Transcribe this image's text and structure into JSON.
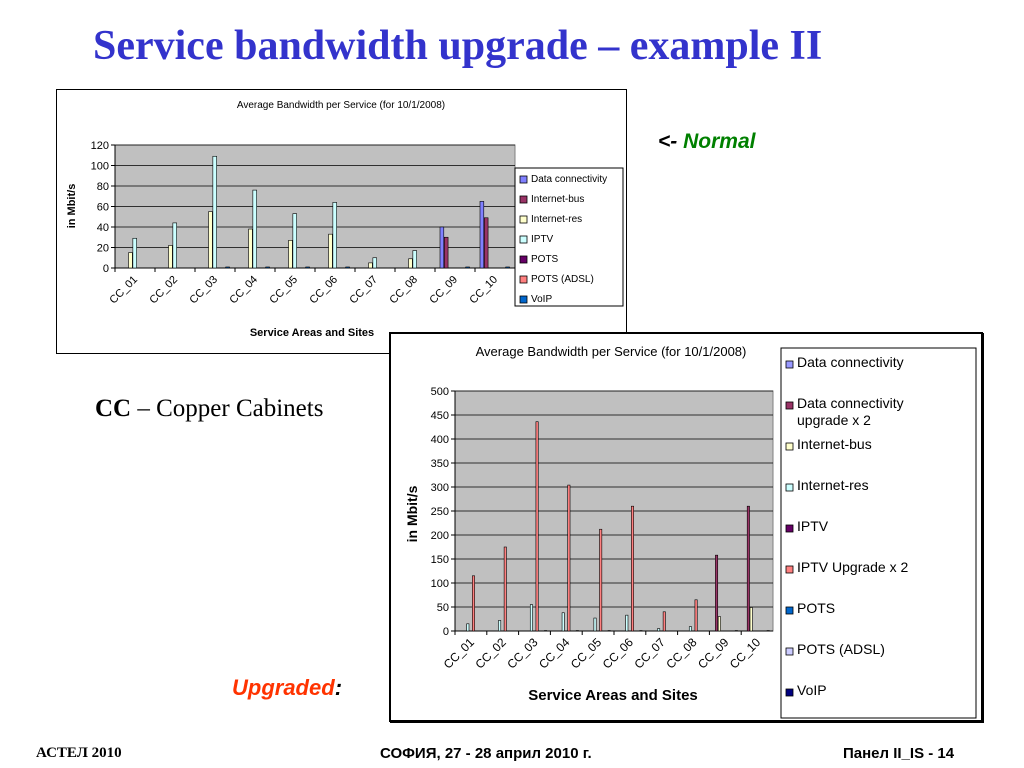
{
  "slide": {
    "title": "Service bandwidth upgrade – example II",
    "normal_arrow": "<-",
    "normal_label": "Normal",
    "cc_abbr": "CC",
    "cc_desc": " – Copper Cabinets",
    "upgraded_label": "Upgraded",
    "upgraded_colon": ":",
    "footer_left": "АСТЕЛ 2010",
    "footer_center": "СОФИЯ, 27 - 28 април 2010 г.",
    "footer_right": "Панел II_IS -  14"
  },
  "chart_data": [
    {
      "type": "bar",
      "title": "Average Bandwidth per Service (for 10/1/2008)",
      "xlabel": "Service Areas and Sites",
      "ylabel": "in Mbit/s",
      "ylim": [
        0,
        120
      ],
      "yticks": [
        0,
        20,
        40,
        60,
        80,
        100,
        120
      ],
      "grid": true,
      "legend_position": "right",
      "categories": [
        "CC_01",
        "CC_02",
        "CC_03",
        "CC_04",
        "CC_05",
        "CC_06",
        "CC_07",
        "CC_08",
        "CC_09",
        "CC_10"
      ],
      "series": [
        {
          "name": "Data connectivity",
          "color": "#8080ff",
          "values": [
            0,
            0,
            0,
            0,
            0,
            0,
            0,
            0,
            40,
            65
          ]
        },
        {
          "name": "Internet-bus",
          "color": "#993366",
          "values": [
            0,
            0,
            0,
            0,
            0,
            0,
            0,
            0,
            30,
            49
          ]
        },
        {
          "name": "Internet-res",
          "color": "#ffffcc",
          "values": [
            15,
            22,
            55,
            38,
            27,
            33,
            5,
            9,
            0,
            0
          ]
        },
        {
          "name": "IPTV",
          "color": "#ccffff",
          "values": [
            29,
            44,
            109,
            76,
            53,
            64,
            10,
            17,
            0,
            0
          ]
        },
        {
          "name": "POTS",
          "color": "#660066",
          "values": [
            0,
            0,
            0,
            0,
            0,
            0,
            0,
            0,
            0,
            0
          ]
        },
        {
          "name": "POTS (ADSL)",
          "color": "#ff8080",
          "values": [
            0,
            0,
            0,
            0,
            0,
            0,
            0,
            0,
            0,
            0
          ]
        },
        {
          "name": "VoIP",
          "color": "#0066cc",
          "values": [
            0,
            0,
            1,
            1,
            1,
            1,
            0,
            0,
            1,
            1
          ]
        }
      ]
    },
    {
      "type": "bar",
      "title": "Average Bandwidth per Service (for 10/1/2008)",
      "xlabel": "Service Areas and Sites",
      "ylabel": "in Mbit/s",
      "ylim": [
        0,
        500
      ],
      "yticks": [
        0,
        50,
        100,
        150,
        200,
        250,
        300,
        350,
        400,
        450,
        500
      ],
      "grid": true,
      "legend_position": "right",
      "categories": [
        "CC_01",
        "CC_02",
        "CC_03",
        "CC_04",
        "CC_05",
        "CC_06",
        "CC_07",
        "CC_08",
        "CC_09",
        "CC_10"
      ],
      "series": [
        {
          "name": "Data connectivity",
          "color": "#9999ff",
          "values": [
            0,
            0,
            0,
            0,
            0,
            0,
            0,
            0,
            0,
            0
          ]
        },
        {
          "name": "Data connectivity upgrade x 2",
          "color": "#993366",
          "values": [
            0,
            0,
            0,
            0,
            0,
            0,
            0,
            0,
            158,
            260
          ]
        },
        {
          "name": "Internet-bus",
          "color": "#ffffcc",
          "values": [
            0,
            0,
            0,
            0,
            0,
            0,
            0,
            0,
            30,
            49
          ]
        },
        {
          "name": "Internet-res",
          "color": "#ccffff",
          "values": [
            15,
            22,
            55,
            38,
            27,
            33,
            5,
            9,
            0,
            0
          ]
        },
        {
          "name": "IPTV",
          "color": "#660066",
          "values": [
            0,
            0,
            0,
            0,
            0,
            0,
            0,
            0,
            0,
            0
          ]
        },
        {
          "name": "IPTV Upgrade x 2",
          "color": "#ff8080",
          "values": [
            115,
            175,
            436,
            304,
            212,
            260,
            40,
            65,
            0,
            0
          ]
        },
        {
          "name": "POTS",
          "color": "#0066cc",
          "values": [
            0,
            0,
            0,
            0,
            0,
            0,
            0,
            0,
            0,
            0
          ]
        },
        {
          "name": "POTS (ADSL)",
          "color": "#ccccff",
          "values": [
            0,
            0,
            0,
            0,
            0,
            0,
            0,
            0,
            0,
            0
          ]
        },
        {
          "name": "VoIP",
          "color": "#000080",
          "values": [
            0,
            0,
            1,
            1,
            1,
            1,
            0,
            0,
            1,
            1
          ]
        }
      ]
    }
  ]
}
